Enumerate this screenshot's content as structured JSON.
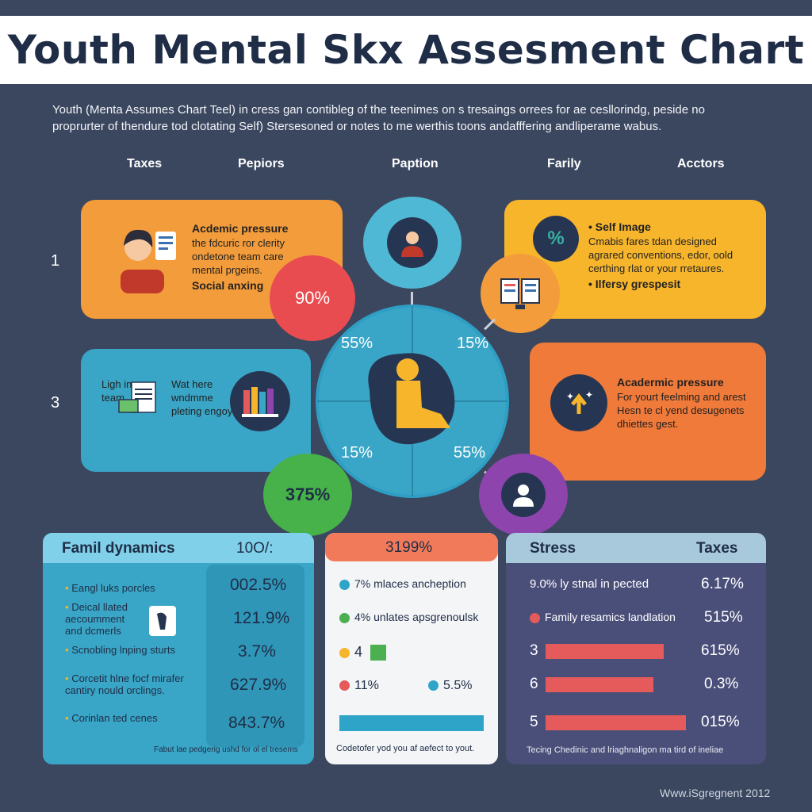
{
  "title": "Youth Mental Skx Assesment Chart",
  "intro": "Youth (Menta Assumes Chart Teel) in cress gan contibleɡ of the teenimes on s tresaings orrees for ae cesllorindg, peside no proprurter of thendure tod clotating Self) Stersesoned or notes to me werthis toons andafffering andliperame wabus.",
  "column_headers": [
    "Taxes",
    "Pepiors",
    "Paption",
    "Farily",
    "Acctors"
  ],
  "row_numbers": [
    "1",
    "3"
  ],
  "panels": {
    "top_left": {
      "heading": "Acdemic pressure",
      "body": "the fdcuric ror clerity ondetone team care mental prgeins.",
      "footer": "Social anxing",
      "color": "#f39c3b"
    },
    "top_right": {
      "bullet1": "Self Image",
      "body": "Cmabis fares tdan designed agrared conventions, edor, oold certhing rlat or your rretaures.",
      "bullet2": "Ilfersy grespesit",
      "color": "#f7b52c"
    },
    "mid_left": {
      "text_a": "Ligh in team",
      "text_b": "Wat here wndmme pleting engoy",
      "color": "#3aa6c7"
    },
    "mid_right": {
      "heading": "Acadermic pressure",
      "body": "For yourt feelming and arest Hesn te cl yend desugenets dhiettes gest.",
      "color": "#f07a3a"
    }
  },
  "bubbles": {
    "red": "90%",
    "green": "375%"
  },
  "chart_data": [
    {
      "type": "pie",
      "title": "",
      "categories": [
        "top-left",
        "top-right",
        "bottom-left",
        "bottom-right"
      ],
      "values": [
        55,
        15,
        15,
        55
      ],
      "labels": [
        "55%",
        "15%",
        "15%",
        "55%"
      ]
    },
    {
      "type": "table",
      "title": "Famil dynamics",
      "header_value": "10O/:",
      "rows": [
        {
          "label": "Eangl luks porcles",
          "value": "002.5%"
        },
        {
          "label": "Deical llated aecoumment and dcmerls",
          "value": "121.9%"
        },
        {
          "label": "Scnobling lnping sturts",
          "value": "3.7%"
        },
        {
          "label": "Corcetit hlne focf mirafer cantiry nould orclings.",
          "value": "627.9%"
        },
        {
          "label": "Corinlan ted cenes",
          "value": "843.7%"
        }
      ],
      "footnote": "Fabut lae pedgerig ushd for ol el tresems"
    },
    {
      "type": "bar",
      "title": "3199%",
      "rows": [
        {
          "label": "7% mlaces ancheption",
          "color": "#2fa4c9"
        },
        {
          "label": "4% unlates apsgrenoulsk",
          "color": "#4caf50"
        },
        {
          "label": "4",
          "color": "#f7b52c"
        },
        {
          "label": "11%",
          "color": "#e55a5a"
        },
        {
          "label": "5.5%",
          "color": "#2fa4c9"
        }
      ],
      "bar_fraction": 0.8,
      "footnote": "Codetofer yod you af aefect to yout."
    },
    {
      "type": "bar",
      "title": "Stress",
      "header_right": "Taxes",
      "text_rows": [
        {
          "label": "9.0% ly stnal in pected",
          "value": "6.17%"
        },
        {
          "label": "Family resamics landlation",
          "value": "515%"
        }
      ],
      "bars": [
        {
          "label": "3",
          "value": "615%",
          "fraction": 0.8
        },
        {
          "label": "6",
          "value": "0.3%",
          "fraction": 0.73
        },
        {
          "label": "5",
          "value": "015%",
          "fraction": 0.95
        }
      ],
      "footnote": "Tecing Chedinic and lriaghnaligon ma tird of ineliae"
    }
  ],
  "footer": "Www.iSgregnent 2012",
  "colors": {
    "background": "#3b475f",
    "blue": "#3aa6c7",
    "orange": "#f39c3b",
    "yellow": "#f7b52c",
    "red": "#e84c50",
    "green": "#47b24a",
    "purple": "#8e44ad"
  }
}
